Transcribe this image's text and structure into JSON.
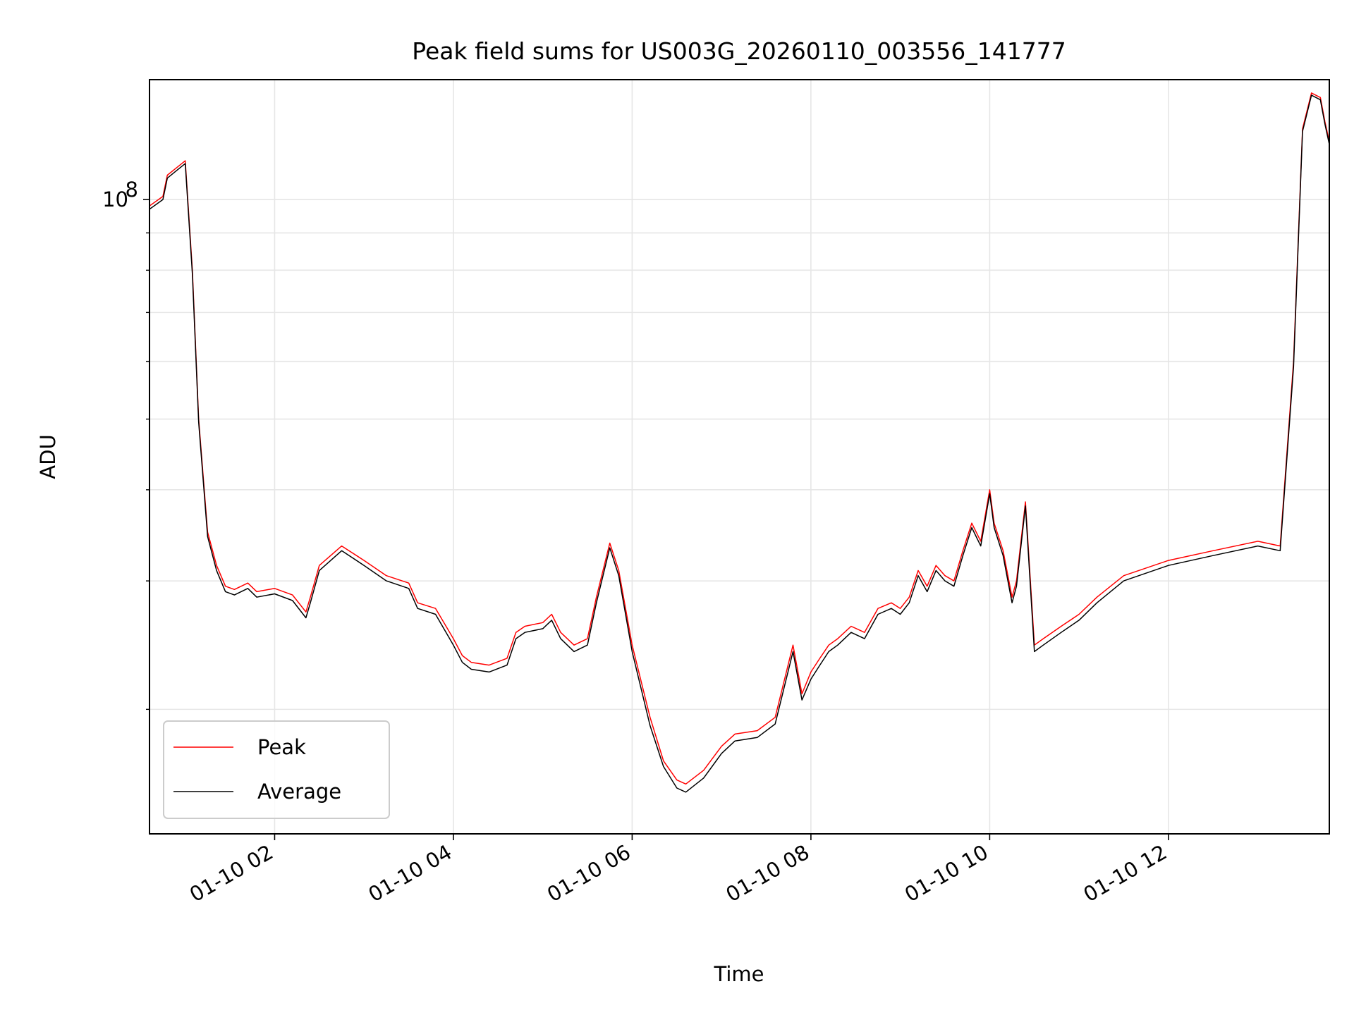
{
  "chart_data": {
    "type": "line",
    "title": "Peak field sums for US003G_20260110_003556_141777",
    "xlabel": "Time",
    "ylabel": "ADU",
    "x_unit": "hours",
    "x_range_hours": [
      0.6,
      13.8
    ],
    "xticks": [
      {
        "value": 2,
        "label": "01-10 02"
      },
      {
        "value": 4,
        "label": "01-10 04"
      },
      {
        "value": 6,
        "label": "01-10 06"
      },
      {
        "value": 8,
        "label": "01-10 08"
      },
      {
        "value": 10,
        "label": "01-10 10"
      },
      {
        "value": 12,
        "label": "01-10 12"
      }
    ],
    "yscale": "log",
    "ylim": [
      13500000,
      146000000
    ],
    "yticks_major": [
      {
        "value": 100000000,
        "base": "10",
        "exp": "8"
      }
    ],
    "yticks_minor": [
      20000000,
      30000000,
      40000000,
      50000000,
      60000000,
      70000000,
      80000000,
      90000000
    ],
    "grid": true,
    "legend_position": "lower-left",
    "series": [
      {
        "name": "Peak",
        "color": "#ff0000",
        "x": [
          0.6,
          0.75,
          0.8,
          0.92,
          1.0,
          1.08,
          1.15,
          1.25,
          1.35,
          1.45,
          1.55,
          1.7,
          1.8,
          2.0,
          2.2,
          2.35,
          2.4,
          2.5,
          2.75,
          3.0,
          3.25,
          3.5,
          3.6,
          3.8,
          4.0,
          4.1,
          4.2,
          4.4,
          4.6,
          4.7,
          4.8,
          5.0,
          5.1,
          5.2,
          5.35,
          5.5,
          5.6,
          5.75,
          5.85,
          6.0,
          6.2,
          6.35,
          6.5,
          6.6,
          6.8,
          7.0,
          7.15,
          7.4,
          7.6,
          7.8,
          7.9,
          8.0,
          8.1,
          8.2,
          8.3,
          8.45,
          8.6,
          8.75,
          8.9,
          9.0,
          9.1,
          9.2,
          9.3,
          9.4,
          9.5,
          9.6,
          9.7,
          9.8,
          9.9,
          10.0,
          10.05,
          10.15,
          10.25,
          10.3,
          10.4,
          10.5,
          10.6,
          10.8,
          11.0,
          11.2,
          11.5,
          12.0,
          12.5,
          13.0,
          13.25,
          13.4,
          13.5,
          13.6,
          13.7,
          13.75,
          13.8
        ],
        "y": [
          98000000,
          101000000,
          108000000,
          111000000,
          113000000,
          80000000,
          50000000,
          35000000,
          31500000,
          29500000,
          29200000,
          29800000,
          29000000,
          29300000,
          28700000,
          27200000,
          28500000,
          31500000,
          33500000,
          32000000,
          30500000,
          29800000,
          28000000,
          27500000,
          25000000,
          23700000,
          23200000,
          23000000,
          23500000,
          25500000,
          26000000,
          26300000,
          27000000,
          25500000,
          24500000,
          25000000,
          28500000,
          33800000,
          31000000,
          24500000,
          19500000,
          17000000,
          16000000,
          15800000,
          16500000,
          17800000,
          18500000,
          18700000,
          19500000,
          24500000,
          21000000,
          22500000,
          23500000,
          24500000,
          25000000,
          26000000,
          25500000,
          27500000,
          28000000,
          27500000,
          28500000,
          31000000,
          29500000,
          31500000,
          30500000,
          30000000,
          33000000,
          36000000,
          34000000,
          40000000,
          36000000,
          33000000,
          28500000,
          30000000,
          38500000,
          24500000,
          25000000,
          26000000,
          27000000,
          28500000,
          30500000,
          32000000,
          33000000,
          34000000,
          33500000,
          60000000,
          125000000,
          140000000,
          138000000,
          128000000,
          120000000
        ]
      },
      {
        "name": "Average",
        "color": "#000000",
        "x": [
          0.6,
          0.75,
          0.8,
          0.92,
          1.0,
          1.08,
          1.15,
          1.25,
          1.35,
          1.45,
          1.55,
          1.7,
          1.8,
          2.0,
          2.2,
          2.35,
          2.4,
          2.5,
          2.75,
          3.0,
          3.25,
          3.5,
          3.6,
          3.8,
          4.0,
          4.1,
          4.2,
          4.4,
          4.6,
          4.7,
          4.8,
          5.0,
          5.1,
          5.2,
          5.35,
          5.5,
          5.6,
          5.75,
          5.85,
          6.0,
          6.2,
          6.35,
          6.5,
          6.6,
          6.8,
          7.0,
          7.15,
          7.4,
          7.6,
          7.8,
          7.9,
          8.0,
          8.1,
          8.2,
          8.3,
          8.45,
          8.6,
          8.75,
          8.9,
          9.0,
          9.1,
          9.2,
          9.3,
          9.4,
          9.5,
          9.6,
          9.7,
          9.8,
          9.9,
          10.0,
          10.05,
          10.15,
          10.25,
          10.3,
          10.4,
          10.5,
          10.6,
          10.8,
          11.0,
          11.2,
          11.5,
          12.0,
          12.5,
          13.0,
          13.25,
          13.4,
          13.5,
          13.6,
          13.7,
          13.75,
          13.8
        ],
        "y": [
          97000000,
          100000000,
          107000000,
          110000000,
          112000000,
          79000000,
          49500000,
          34500000,
          31000000,
          29000000,
          28700000,
          29300000,
          28500000,
          28800000,
          28200000,
          26700000,
          28000000,
          31000000,
          33000000,
          31500000,
          30000000,
          29300000,
          27500000,
          27000000,
          24500000,
          23200000,
          22700000,
          22500000,
          23000000,
          25000000,
          25500000,
          25800000,
          26500000,
          25000000,
          24000000,
          24500000,
          28000000,
          33300000,
          30500000,
          24000000,
          19000000,
          16700000,
          15600000,
          15400000,
          16100000,
          17400000,
          18100000,
          18300000,
          19100000,
          24000000,
          20600000,
          22000000,
          23000000,
          24000000,
          24500000,
          25500000,
          25000000,
          27000000,
          27500000,
          27000000,
          28000000,
          30500000,
          29000000,
          31000000,
          30000000,
          29500000,
          32500000,
          35500000,
          33500000,
          39500000,
          35500000,
          32500000,
          28000000,
          29500000,
          38000000,
          24000000,
          24500000,
          25500000,
          26500000,
          28000000,
          30000000,
          31500000,
          32500000,
          33500000,
          33000000,
          59000000,
          124000000,
          139000000,
          137000000,
          127000000,
          119000000
        ]
      }
    ]
  }
}
